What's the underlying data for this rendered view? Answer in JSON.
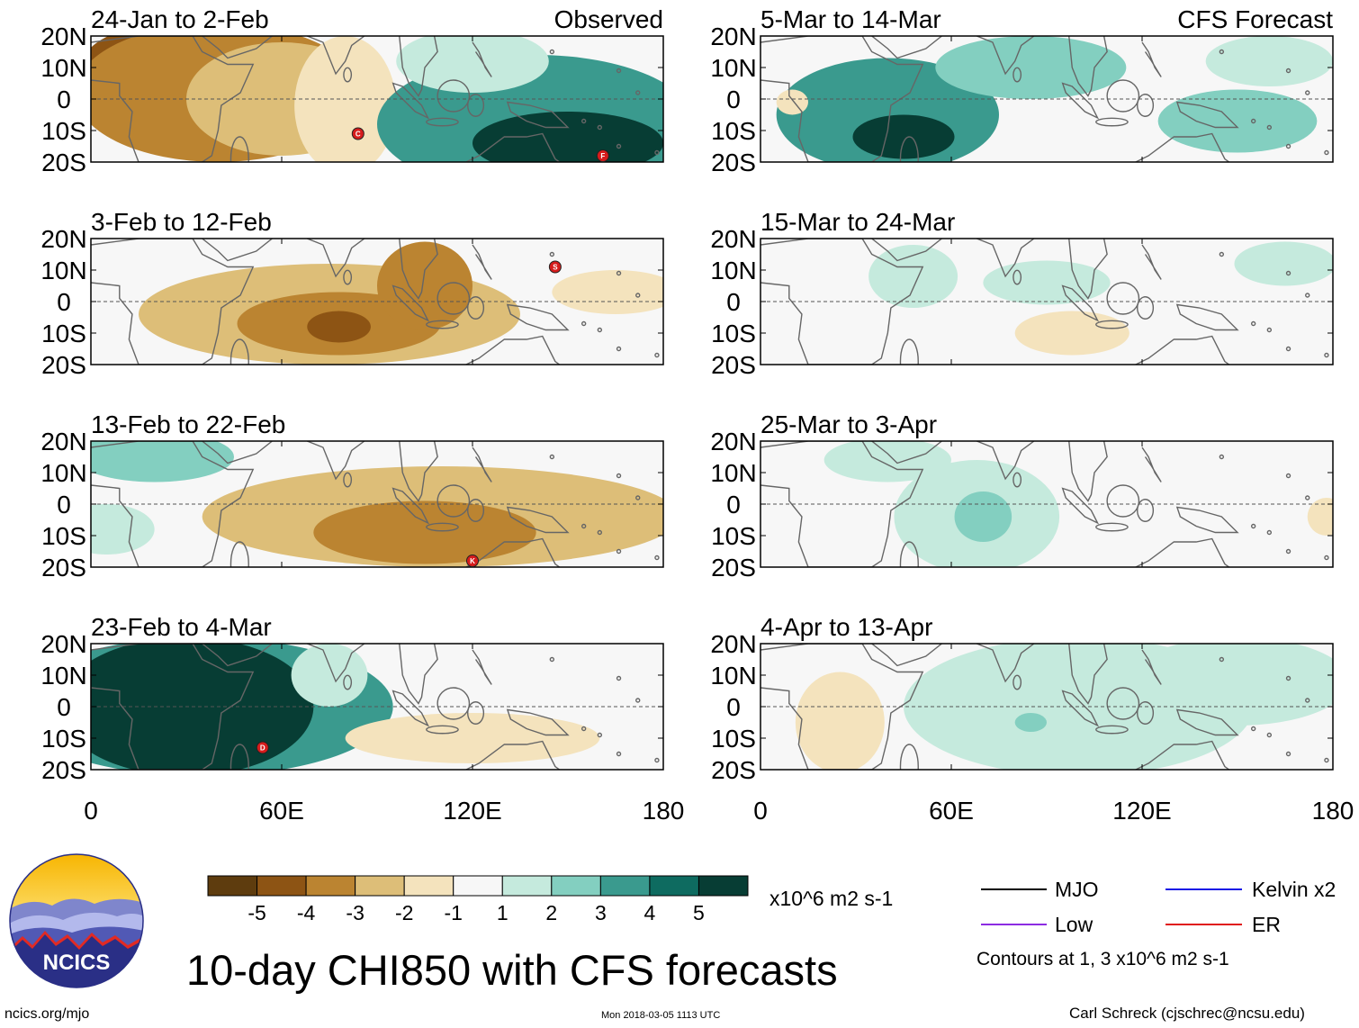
{
  "chart_data": {
    "type": "heatmap",
    "title": "10-day CHI850 with CFS forecasts",
    "columns": [
      {
        "header_right": "Observed"
      },
      {
        "header_right": "CFS Forecast"
      }
    ],
    "y_ticks": [
      "20N",
      "10N",
      "0",
      "10S",
      "20S"
    ],
    "y_tick_values": [
      20,
      10,
      0,
      -10,
      -20
    ],
    "x_ticks": [
      "0",
      "60E",
      "120E",
      "180"
    ],
    "x_tick_values": [
      0,
      60,
      120,
      180
    ],
    "ylim": [
      -20,
      20
    ],
    "xlim": [
      0,
      180
    ],
    "panels": [
      {
        "title": "24-Jan to 2-Feb",
        "column": "Observed",
        "row": 1,
        "blobs": [
          {
            "lon": 25,
            "lat": 10,
            "rx": 28,
            "ry": 14,
            "value": -4.5
          },
          {
            "lon": 40,
            "lat": 2,
            "rx": 45,
            "ry": 22,
            "value": -3.5
          },
          {
            "lon": 60,
            "lat": 0,
            "rx": 30,
            "ry": 18,
            "value": -2.5
          },
          {
            "lon": 80,
            "lat": -2,
            "rx": 16,
            "ry": 22,
            "value": -1.5
          },
          {
            "lon": 140,
            "lat": -8,
            "rx": 50,
            "ry": 22,
            "value": 3.5
          },
          {
            "lon": 150,
            "lat": -14,
            "rx": 30,
            "ry": 10,
            "value": 5.5
          },
          {
            "lon": 120,
            "lat": 12,
            "rx": 24,
            "ry": 10,
            "value": 1.5
          }
        ],
        "storms": [
          {
            "lon": 84,
            "lat": -11,
            "label": "C"
          },
          {
            "lon": 161,
            "lat": -18,
            "label": "F"
          }
        ]
      },
      {
        "title": "3-Feb to 12-Feb",
        "column": "Observed",
        "row": 2,
        "blobs": [
          {
            "lon": 75,
            "lat": -4,
            "rx": 60,
            "ry": 16,
            "value": -2
          },
          {
            "lon": 78,
            "lat": -7,
            "rx": 32,
            "ry": 10,
            "value": -3.5
          },
          {
            "lon": 78,
            "lat": -8,
            "rx": 10,
            "ry": 5,
            "value": -4.5
          },
          {
            "lon": 105,
            "lat": 5,
            "rx": 15,
            "ry": 14,
            "value": -3
          },
          {
            "lon": 165,
            "lat": 3,
            "rx": 20,
            "ry": 7,
            "value": -1.5
          }
        ],
        "storms": [
          {
            "lon": 146,
            "lat": 11,
            "label": "S"
          }
        ]
      },
      {
        "title": "13-Feb to 22-Feb",
        "column": "Observed",
        "row": 3,
        "blobs": [
          {
            "lon": 20,
            "lat": 15,
            "rx": 25,
            "ry": 8,
            "value": 2.5
          },
          {
            "lon": 5,
            "lat": -8,
            "rx": 15,
            "ry": 8,
            "value": 1.5
          },
          {
            "lon": 110,
            "lat": -4,
            "rx": 75,
            "ry": 16,
            "value": -2
          },
          {
            "lon": 105,
            "lat": -9,
            "rx": 35,
            "ry": 10,
            "value": -3.5
          }
        ],
        "storms": [
          {
            "lon": 120,
            "lat": -18,
            "label": "K"
          }
        ]
      },
      {
        "title": "23-Feb to 4-Mar",
        "column": "Observed",
        "row": 4,
        "blobs": [
          {
            "lon": 35,
            "lat": 0,
            "rx": 60,
            "ry": 22,
            "value": 3.5
          },
          {
            "lon": 30,
            "lat": 0,
            "rx": 40,
            "ry": 22,
            "value": 5.5
          },
          {
            "lon": 75,
            "lat": 10,
            "rx": 12,
            "ry": 10,
            "value": 1.5
          },
          {
            "lon": 120,
            "lat": -10,
            "rx": 40,
            "ry": 8,
            "value": -1.5
          }
        ],
        "storms": [
          {
            "lon": 54,
            "lat": -13,
            "label": "D"
          }
        ]
      },
      {
        "title": "5-Mar to 14-Mar",
        "column": "CFS Forecast",
        "row": 1,
        "blobs": [
          {
            "lon": 40,
            "lat": -5,
            "rx": 35,
            "ry": 18,
            "value": 3.5
          },
          {
            "lon": 45,
            "lat": -12,
            "rx": 16,
            "ry": 7,
            "value": 5.5
          },
          {
            "lon": 85,
            "lat": 10,
            "rx": 30,
            "ry": 10,
            "value": 2.5
          },
          {
            "lon": 150,
            "lat": -7,
            "rx": 25,
            "ry": 10,
            "value": 2.5
          },
          {
            "lon": 160,
            "lat": 12,
            "rx": 20,
            "ry": 8,
            "value": 1.5
          },
          {
            "lon": 10,
            "lat": -1,
            "rx": 5,
            "ry": 4,
            "value": -1.5
          }
        ],
        "storms": []
      },
      {
        "title": "15-Mar to 24-Mar",
        "column": "CFS Forecast",
        "row": 2,
        "blobs": [
          {
            "lon": 48,
            "lat": 8,
            "rx": 14,
            "ry": 10,
            "value": 1.5
          },
          {
            "lon": 90,
            "lat": 6,
            "rx": 20,
            "ry": 7,
            "value": 1.5
          },
          {
            "lon": 165,
            "lat": 12,
            "rx": 16,
            "ry": 7,
            "value": 1.5
          },
          {
            "lon": 98,
            "lat": -10,
            "rx": 18,
            "ry": 7,
            "value": -1.5
          }
        ],
        "storms": []
      },
      {
        "title": "25-Mar to 3-Apr",
        "column": "CFS Forecast",
        "row": 3,
        "blobs": [
          {
            "lon": 68,
            "lat": -4,
            "rx": 26,
            "ry": 18,
            "value": 1.5
          },
          {
            "lon": 70,
            "lat": -4,
            "rx": 9,
            "ry": 8,
            "value": 2.5
          },
          {
            "lon": 40,
            "lat": 14,
            "rx": 20,
            "ry": 7,
            "value": 1.5
          },
          {
            "lon": 178,
            "lat": -4,
            "rx": 6,
            "ry": 6,
            "value": -1.5
          }
        ],
        "storms": []
      },
      {
        "title": "4-Apr to 13-Apr",
        "column": "CFS Forecast",
        "row": 4,
        "blobs": [
          {
            "lon": 100,
            "lat": 0,
            "rx": 55,
            "ry": 22,
            "value": 1.5
          },
          {
            "lon": 150,
            "lat": 8,
            "rx": 35,
            "ry": 14,
            "value": 1.5
          },
          {
            "lon": 85,
            "lat": -5,
            "rx": 5,
            "ry": 3,
            "value": 2.5
          },
          {
            "lon": 25,
            "lat": -5,
            "rx": 14,
            "ry": 16,
            "value": -1.5
          }
        ],
        "storms": []
      }
    ],
    "colorbar": {
      "colors": [
        "#5e3c0e",
        "#8d5414",
        "#bb8431",
        "#ddbe78",
        "#f4e3bd",
        "#f7f7f7",
        "#c5eadd",
        "#83cfc0",
        "#3a9a8e",
        "#0e6b60",
        "#073d34"
      ],
      "labels": [
        "-5",
        "-4",
        "-3",
        "-2",
        "-1",
        "1",
        "2",
        "3",
        "4",
        "5"
      ],
      "units": "x10^6 m2 s-1"
    },
    "legend": {
      "items": [
        {
          "label": "MJO",
          "color": "#000000"
        },
        {
          "label": "Kelvin x2",
          "color": "#1a1ae6"
        },
        {
          "label": "Low",
          "color": "#8c2be2"
        },
        {
          "label": "ER",
          "color": "#e01a1a"
        }
      ],
      "contours_note": "Contours at 1, 3 x10^6 m2 s-1"
    }
  },
  "logo": {
    "text": "NCICS"
  },
  "footer": {
    "url": "ncics.org/mjo",
    "timestamp": "Mon 2018-03-05 1113 UTC",
    "author": "Carl Schreck (cjschrec@ncsu.edu)"
  }
}
